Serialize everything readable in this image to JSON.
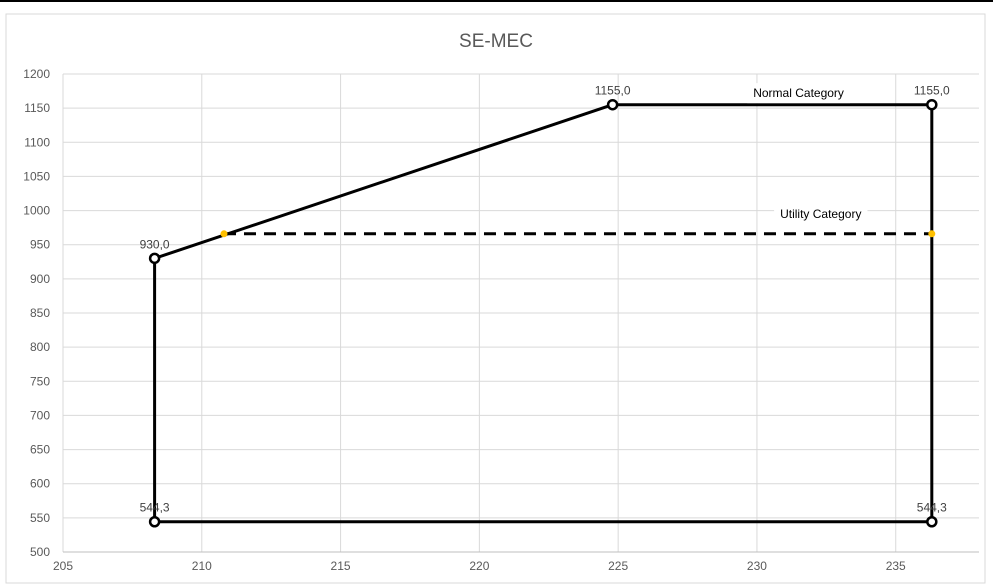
{
  "chart_data": {
    "type": "scatter",
    "title": "SE-MEC",
    "xlabel": "",
    "ylabel": "",
    "xlim": [
      205,
      238
    ],
    "ylim": [
      500,
      1200
    ],
    "x_ticks": [
      205,
      210,
      215,
      220,
      225,
      230,
      235
    ],
    "y_ticks": [
      500,
      550,
      600,
      650,
      700,
      750,
      800,
      850,
      900,
      950,
      1000,
      1050,
      1100,
      1150,
      1200
    ],
    "grid": true,
    "series": [
      {
        "style": "solid",
        "color": "#000000",
        "marker": "circle",
        "points": [
          {
            "x": 208.3,
            "y": 544.3,
            "label": "544,3"
          },
          {
            "x": 208.3,
            "y": 930.0,
            "label": "930,0"
          },
          {
            "x": 224.8,
            "y": 1155.0,
            "label": "1155,0"
          },
          {
            "x": 236.3,
            "y": 1155.0,
            "label": "1155,0"
          },
          {
            "x": 236.3,
            "y": 544.3,
            "label": "544,3"
          },
          {
            "x": 208.3,
            "y": 544.3,
            "label": ""
          }
        ]
      },
      {
        "style": "dashed",
        "color": "#000000",
        "marker_color": "#FFC000",
        "points": [
          {
            "x": 210.8,
            "y": 966.0
          },
          {
            "x": 236.3,
            "y": 966.0
          }
        ]
      }
    ],
    "annotations": [
      {
        "text": "Normal Category",
        "x": 231.5,
        "y": 1172
      },
      {
        "text": "Utility Category",
        "x": 232.3,
        "y": 995
      }
    ]
  }
}
